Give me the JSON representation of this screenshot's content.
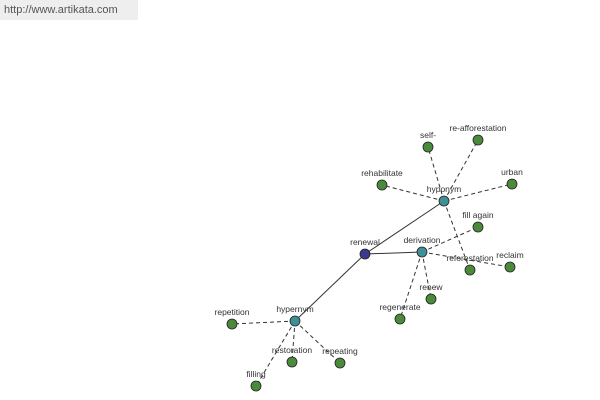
{
  "header": {
    "url": "http://www.artikata.com"
  },
  "nodes": [
    {
      "label": "renewal"
    },
    {
      "label": "derivation"
    },
    {
      "label": "hyponym"
    },
    {
      "label": "hypernym"
    },
    {
      "label": "self-"
    },
    {
      "label": "re-afforestation"
    },
    {
      "label": "urban"
    },
    {
      "label": "rehabilitate"
    },
    {
      "label": "fill again"
    },
    {
      "label": "reforestation"
    },
    {
      "label": "reclaim"
    },
    {
      "label": "renew"
    },
    {
      "label": "regenerate"
    },
    {
      "label": "repetition"
    },
    {
      "label": "restoration"
    },
    {
      "label": "repeating"
    },
    {
      "label": "filling"
    }
  ]
}
